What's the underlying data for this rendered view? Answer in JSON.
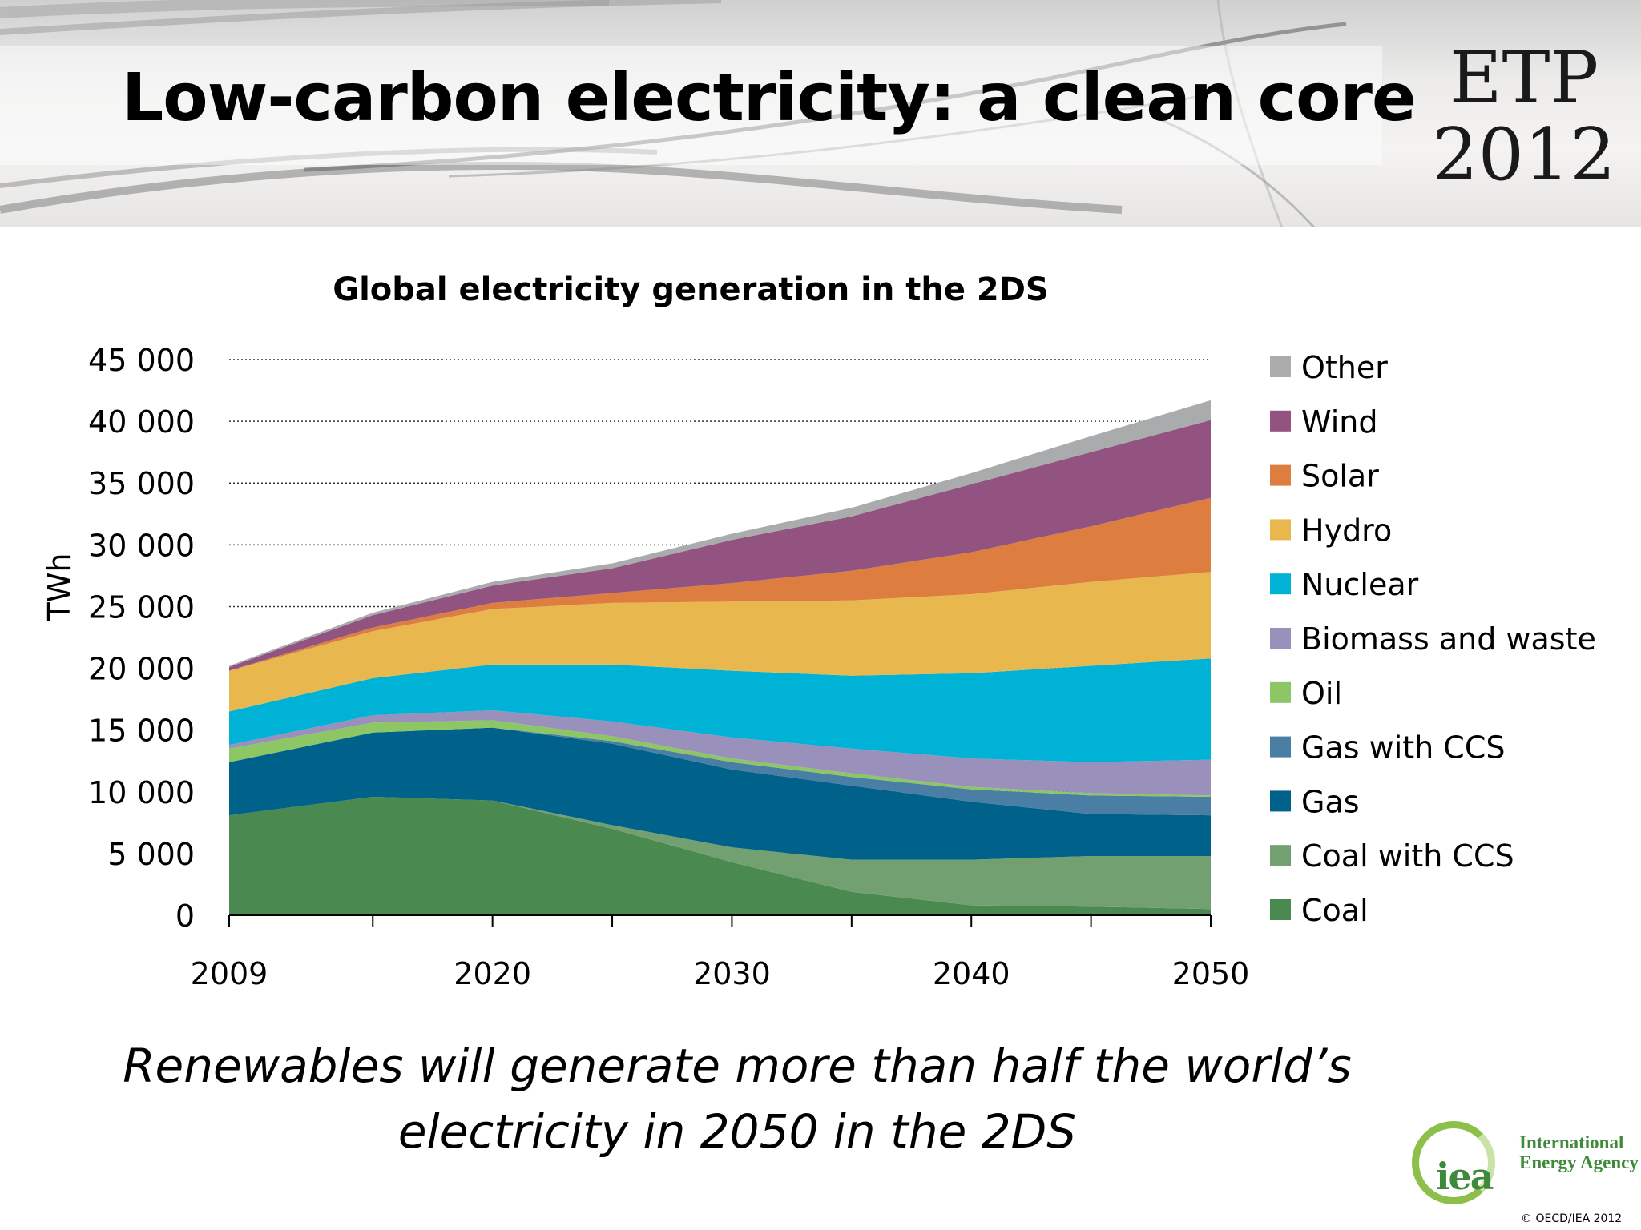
{
  "slide": {
    "title": "Low-carbon electricity: a clean core",
    "logo_line1": "ETP",
    "logo_line2": "2012",
    "subtitle_line1": "Renewables will generate more than half the world’s",
    "subtitle_line2": "electricity in 2050 in the 2DS",
    "org_logo_abbr": "iea",
    "org_name_line1": "International",
    "org_name_line2": "Energy Agency",
    "copyright": "© OECD/IEA 2012"
  },
  "chart_data": {
    "type": "area",
    "stacked": true,
    "title": "Global electricity generation in the 2DS",
    "xlabel": "",
    "ylabel": "TWh",
    "ylim": [
      0,
      45000
    ],
    "yticks": [
      0,
      5000,
      10000,
      15000,
      20000,
      25000,
      30000,
      35000,
      40000,
      45000
    ],
    "ytick_labels": [
      "0",
      "5 000",
      "10 000",
      "15 000",
      "20 000",
      "25 000",
      "30 000",
      "35 000",
      "40 000",
      "45 000"
    ],
    "x": [
      2009,
      2015,
      2020,
      2025,
      2030,
      2035,
      2040,
      2045,
      2050
    ],
    "xtick_labels": [
      "2009",
      "",
      "2020",
      "",
      "2030",
      "",
      "2040",
      "",
      "2050"
    ],
    "grid": "horizontal dotted",
    "legend_position": "right",
    "series": [
      {
        "name": "Coal",
        "color": "#4a8a50",
        "values": [
          8100,
          9600,
          9300,
          7000,
          4300,
          1900,
          800,
          700,
          500
        ]
      },
      {
        "name": "Coal with CCS",
        "color": "#72a070",
        "values": [
          0,
          0,
          0,
          300,
          1200,
          2600,
          3700,
          4100,
          4300
        ]
      },
      {
        "name": "Gas",
        "color": "#00628b",
        "values": [
          4300,
          5200,
          5900,
          6600,
          6300,
          6000,
          4700,
          3400,
          3300
        ]
      },
      {
        "name": "Gas with CCS",
        "color": "#4a7ea4",
        "values": [
          0,
          0,
          0,
          200,
          600,
          700,
          1000,
          1500,
          1500
        ]
      },
      {
        "name": "Oil",
        "color": "#8dc765",
        "values": [
          1100,
          800,
          600,
          400,
          300,
          300,
          200,
          200,
          100
        ]
      },
      {
        "name": "Biomass and waste",
        "color": "#9990bc",
        "values": [
          300,
          600,
          800,
          1200,
          1700,
          2000,
          2300,
          2500,
          2900
        ]
      },
      {
        "name": "Nuclear",
        "color": "#00b3d6",
        "values": [
          2700,
          3000,
          3700,
          4600,
          5400,
          5900,
          6900,
          7800,
          8200
        ]
      },
      {
        "name": "Hydro",
        "color": "#e8b84f",
        "values": [
          3300,
          3800,
          4500,
          5000,
          5600,
          6100,
          6400,
          6800,
          7000
        ]
      },
      {
        "name": "Solar",
        "color": "#dd7d40",
        "values": [
          0,
          300,
          500,
          800,
          1500,
          2400,
          3400,
          4500,
          6000
        ]
      },
      {
        "name": "Wind",
        "color": "#925380",
        "values": [
          300,
          1000,
          1400,
          2000,
          3500,
          4400,
          5500,
          6000,
          6300
        ]
      },
      {
        "name": "Other",
        "color": "#aaabad",
        "values": [
          100,
          200,
          300,
          400,
          500,
          700,
          900,
          1300,
          1600
        ]
      }
    ]
  }
}
